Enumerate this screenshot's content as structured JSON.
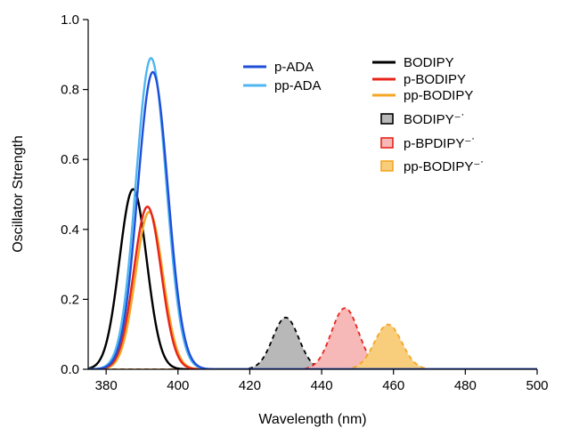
{
  "chart_data": {
    "type": "line",
    "title": "",
    "xlabel": "Wavelength (nm)",
    "ylabel": "Oscillator Strength",
    "xlim": [
      375,
      500
    ],
    "ylim": [
      0,
      1.0
    ],
    "xticks": [
      380,
      400,
      420,
      440,
      460,
      480,
      500
    ],
    "yticks": [
      0.0,
      0.2,
      0.4,
      0.6,
      0.8,
      1.0
    ],
    "xtick_labels": [
      "380",
      "400",
      "420",
      "440",
      "460",
      "480",
      "500"
    ],
    "ytick_labels": [
      "0.0",
      "0.2",
      "0.4",
      "0.6",
      "0.8",
      "1.0"
    ],
    "grid": false,
    "legend_placement": "top-right",
    "series": [
      {
        "name": "p-ADA",
        "style": "line",
        "color": "#1f4fd8",
        "peak_x": 393.0,
        "peak_y": 0.85,
        "width": 4.2
      },
      {
        "name": "pp-ADA",
        "style": "line",
        "color": "#4fb6f0",
        "peak_x": 392.5,
        "peak_y": 0.89,
        "width": 4.2
      },
      {
        "name": "BODIPY",
        "style": "line",
        "color": "#000000",
        "peak_x": 387.5,
        "peak_y": 0.515,
        "width": 3.8
      },
      {
        "name": "p-BODIPY",
        "style": "line",
        "color": "#e8231a",
        "peak_x": 391.5,
        "peak_y": 0.465,
        "width": 3.8
      },
      {
        "name": "pp-BODIPY",
        "style": "line",
        "color": "#f5a623",
        "peak_x": 392.0,
        "peak_y": 0.45,
        "width": 3.8
      },
      {
        "name": "BODIPY⁻˙",
        "style": "filled-dashed",
        "color": "#000000",
        "fill": "#b8b8b8",
        "peak_x": 430.0,
        "peak_y": 0.148,
        "width": 3.6
      },
      {
        "name": "p-BPDIPY⁻˙",
        "style": "filled-dashed",
        "color": "#e8231a",
        "fill": "#f7b8b8",
        "peak_x": 446.5,
        "peak_y": 0.175,
        "width": 3.8
      },
      {
        "name": "pp-BODIPY⁻˙",
        "style": "filled-dashed",
        "color": "#f5a623",
        "fill": "#f8cd7c",
        "peak_x": 458.5,
        "peak_y": 0.128,
        "width": 3.8
      }
    ]
  }
}
